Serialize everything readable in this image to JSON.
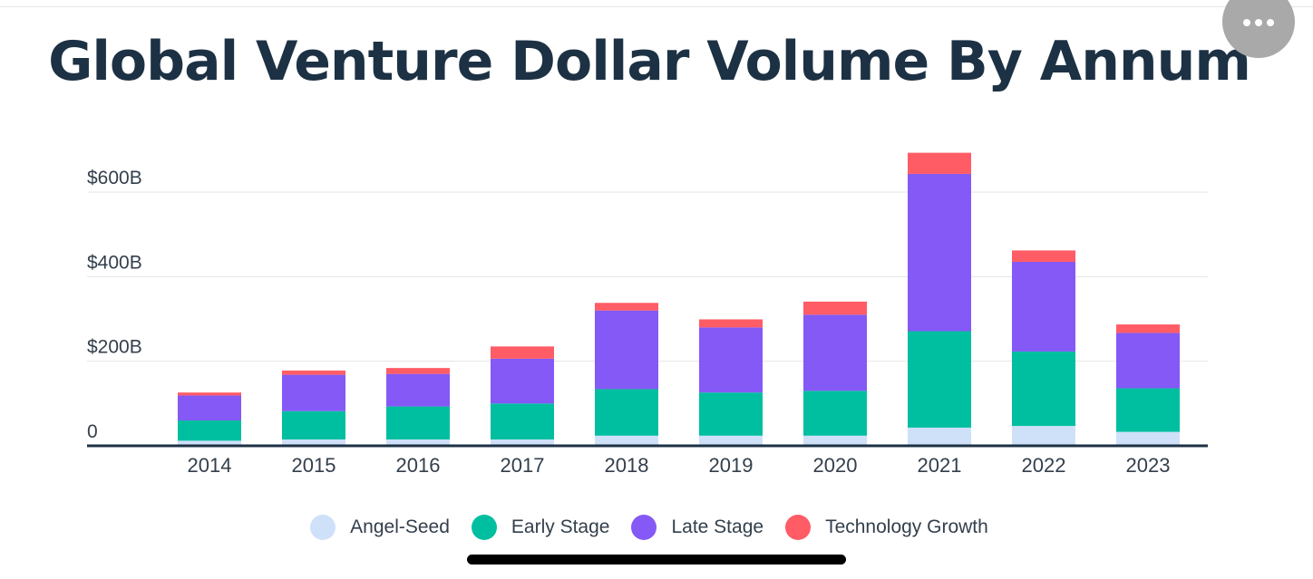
{
  "header": {
    "title": "Global Venture Dollar Volume By Annum",
    "more_icon": "more-horizontal-icon"
  },
  "colors": {
    "Angel-Seed": "#cfe0f9",
    "Early Stage": "#00bfa0",
    "Late Stage": "#8459f5",
    "Technology Growth": "#ff5c66"
  },
  "chart_data": {
    "type": "bar",
    "stacked": true,
    "title": "Global Venture Dollar Volume By Annum",
    "xlabel": "",
    "ylabel": "",
    "ylim": [
      0,
      600
    ],
    "y_ticks": [
      {
        "value": 0,
        "label": "0"
      },
      {
        "value": 200,
        "label": "$200B"
      },
      {
        "value": 400,
        "label": "$400B"
      },
      {
        "value": 600,
        "label": "$600B"
      }
    ],
    "categories": [
      "2014",
      "2015",
      "2016",
      "2017",
      "2018",
      "2019",
      "2020",
      "2021",
      "2022",
      "2023"
    ],
    "series": [
      {
        "name": "Angel-Seed",
        "values": [
          12,
          15,
          15,
          15,
          24,
          24,
          24,
          43,
          47,
          33
        ]
      },
      {
        "name": "Early Stage",
        "values": [
          48,
          67,
          78,
          85,
          110,
          102,
          106,
          228,
          176,
          103
        ]
      },
      {
        "name": "Late Stage",
        "values": [
          59,
          86,
          77,
          106,
          186,
          154,
          180,
          372,
          212,
          131
        ]
      },
      {
        "name": "Technology Growth",
        "values": [
          7,
          10,
          14,
          29,
          18,
          19,
          31,
          50,
          27,
          20
        ]
      }
    ],
    "grid": true,
    "legend_position": "bottom"
  },
  "legend": {
    "items": [
      {
        "label": "Angel-Seed"
      },
      {
        "label": "Early Stage"
      },
      {
        "label": "Late Stage"
      },
      {
        "label": "Technology Growth"
      }
    ]
  }
}
